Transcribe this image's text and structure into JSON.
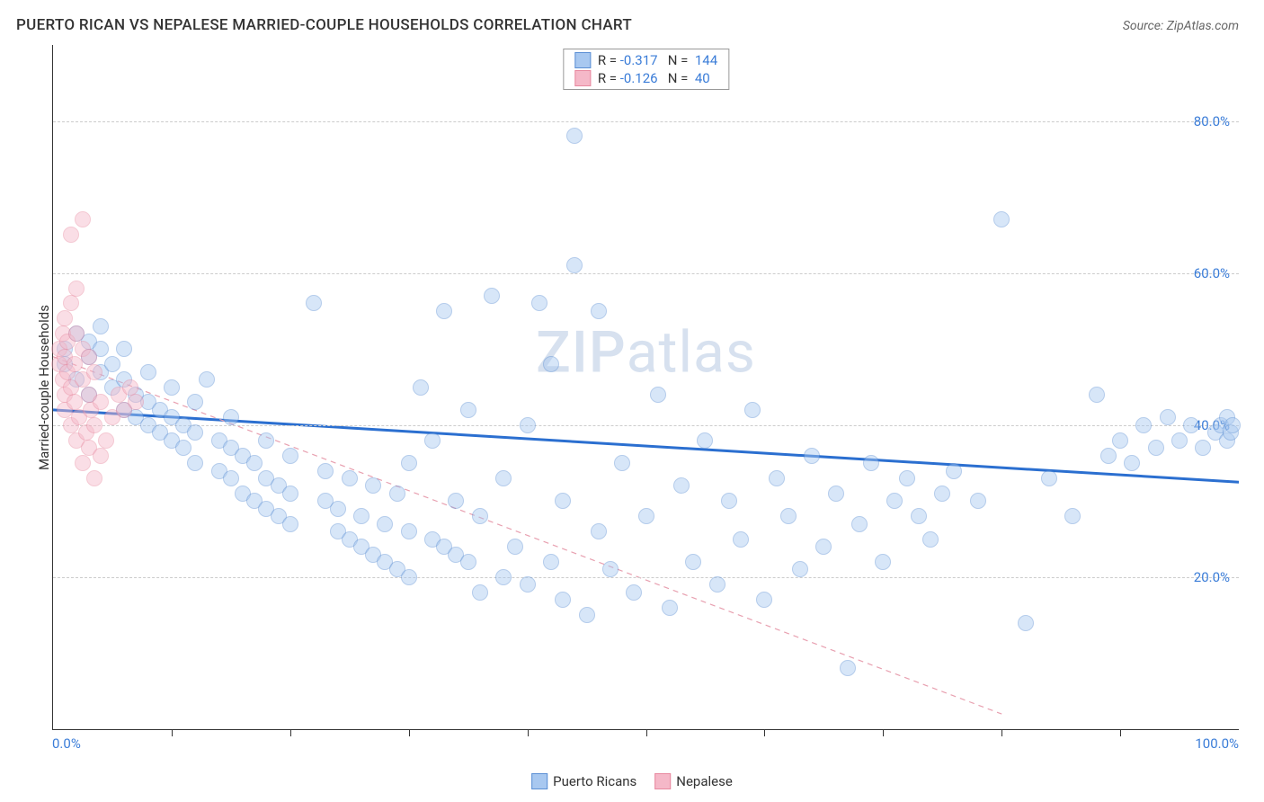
{
  "title": "PUERTO RICAN VS NEPALESE MARRIED-COUPLE HOUSEHOLDS CORRELATION CHART",
  "source": "Source: ZipAtlas.com",
  "ylabel": "Married-couple Households",
  "watermark_a": "ZIP",
  "watermark_b": "atlas",
  "chart": {
    "type": "scatter",
    "xlim": [
      0,
      100
    ],
    "ylim": [
      0,
      90
    ],
    "x_min_label": "0.0%",
    "x_max_label": "100.0%",
    "ytick_values": [
      20,
      40,
      60,
      80
    ],
    "ytick_labels": [
      "20.0%",
      "40.0%",
      "60.0%",
      "80.0%"
    ],
    "xtick_values": [
      10,
      20,
      30,
      40,
      50,
      60,
      70,
      80,
      90
    ],
    "background_color": "#ffffff",
    "grid_color": "#cccccc",
    "axis_color": "#333333",
    "point_radius": 9,
    "point_opacity": 0.45,
    "series": [
      {
        "name": "Puerto Ricans",
        "color_fill": "#a8c8f0",
        "color_stroke": "#5b8fd4",
        "r": "-0.317",
        "n": "144",
        "trend": {
          "x1": 0,
          "y1": 42,
          "x2": 100,
          "y2": 32.5,
          "color": "#2b6fd0",
          "width": 3,
          "dash": "none"
        },
        "points": [
          [
            1,
            48
          ],
          [
            1,
            50
          ],
          [
            2,
            46
          ],
          [
            2,
            52
          ],
          [
            3,
            49
          ],
          [
            3,
            44
          ],
          [
            3,
            51
          ],
          [
            4,
            47
          ],
          [
            4,
            50
          ],
          [
            4,
            53
          ],
          [
            5,
            45
          ],
          [
            5,
            48
          ],
          [
            6,
            42
          ],
          [
            6,
            46
          ],
          [
            6,
            50
          ],
          [
            7,
            41
          ],
          [
            7,
            44
          ],
          [
            8,
            40
          ],
          [
            8,
            43
          ],
          [
            8,
            47
          ],
          [
            9,
            39
          ],
          [
            9,
            42
          ],
          [
            10,
            38
          ],
          [
            10,
            41
          ],
          [
            10,
            45
          ],
          [
            11,
            37
          ],
          [
            11,
            40
          ],
          [
            12,
            35
          ],
          [
            12,
            39
          ],
          [
            12,
            43
          ],
          [
            13,
            46
          ],
          [
            14,
            34
          ],
          [
            14,
            38
          ],
          [
            15,
            33
          ],
          [
            15,
            37
          ],
          [
            15,
            41
          ],
          [
            16,
            31
          ],
          [
            16,
            36
          ],
          [
            17,
            30
          ],
          [
            17,
            35
          ],
          [
            18,
            29
          ],
          [
            18,
            33
          ],
          [
            18,
            38
          ],
          [
            19,
            28
          ],
          [
            19,
            32
          ],
          [
            20,
            27
          ],
          [
            20,
            31
          ],
          [
            20,
            36
          ],
          [
            22,
            56
          ],
          [
            23,
            30
          ],
          [
            23,
            34
          ],
          [
            24,
            26
          ],
          [
            24,
            29
          ],
          [
            25,
            25
          ],
          [
            25,
            33
          ],
          [
            26,
            24
          ],
          [
            26,
            28
          ],
          [
            27,
            23
          ],
          [
            27,
            32
          ],
          [
            28,
            22
          ],
          [
            28,
            27
          ],
          [
            29,
            21
          ],
          [
            29,
            31
          ],
          [
            30,
            20
          ],
          [
            30,
            26
          ],
          [
            30,
            35
          ],
          [
            31,
            45
          ],
          [
            32,
            25
          ],
          [
            32,
            38
          ],
          [
            33,
            24
          ],
          [
            33,
            55
          ],
          [
            34,
            23
          ],
          [
            34,
            30
          ],
          [
            35,
            22
          ],
          [
            35,
            42
          ],
          [
            36,
            18
          ],
          [
            36,
            28
          ],
          [
            37,
            57
          ],
          [
            38,
            20
          ],
          [
            38,
            33
          ],
          [
            39,
            24
          ],
          [
            40,
            19
          ],
          [
            40,
            40
          ],
          [
            41,
            56
          ],
          [
            42,
            22
          ],
          [
            42,
            48
          ],
          [
            43,
            17
          ],
          [
            43,
            30
          ],
          [
            44,
            78
          ],
          [
            44,
            61
          ],
          [
            45,
            15
          ],
          [
            46,
            26
          ],
          [
            46,
            55
          ],
          [
            47,
            21
          ],
          [
            48,
            35
          ],
          [
            49,
            18
          ],
          [
            50,
            28
          ],
          [
            51,
            44
          ],
          [
            52,
            16
          ],
          [
            53,
            32
          ],
          [
            54,
            22
          ],
          [
            55,
            38
          ],
          [
            56,
            19
          ],
          [
            57,
            30
          ],
          [
            58,
            25
          ],
          [
            59,
            42
          ],
          [
            60,
            17
          ],
          [
            61,
            33
          ],
          [
            62,
            28
          ],
          [
            63,
            21
          ],
          [
            64,
            36
          ],
          [
            65,
            24
          ],
          [
            66,
            31
          ],
          [
            67,
            8
          ],
          [
            68,
            27
          ],
          [
            69,
            35
          ],
          [
            70,
            22
          ],
          [
            71,
            30
          ],
          [
            72,
            33
          ],
          [
            73,
            28
          ],
          [
            74,
            25
          ],
          [
            75,
            31
          ],
          [
            76,
            34
          ],
          [
            78,
            30
          ],
          [
            80,
            67
          ],
          [
            82,
            14
          ],
          [
            84,
            33
          ],
          [
            86,
            28
          ],
          [
            88,
            44
          ],
          [
            89,
            36
          ],
          [
            90,
            38
          ],
          [
            91,
            35
          ],
          [
            92,
            40
          ],
          [
            93,
            37
          ],
          [
            94,
            41
          ],
          [
            95,
            38
          ],
          [
            96,
            40
          ],
          [
            97,
            37
          ],
          [
            98,
            39
          ],
          [
            98.5,
            40
          ],
          [
            99,
            38
          ],
          [
            99,
            41
          ],
          [
            99.3,
            39
          ],
          [
            99.5,
            40
          ]
        ]
      },
      {
        "name": "Nepalese",
        "color_fill": "#f5b8c8",
        "color_stroke": "#e8889f",
        "r": "-0.126",
        "n": "40",
        "trend": {
          "x1": 0,
          "y1": 49,
          "x2": 80,
          "y2": 2,
          "color": "#e8a0b0",
          "width": 1.2,
          "dash": "6,5"
        },
        "points": [
          [
            0.5,
            48
          ],
          [
            0.5,
            50
          ],
          [
            0.8,
            46
          ],
          [
            0.8,
            52
          ],
          [
            1,
            44
          ],
          [
            1,
            49
          ],
          [
            1,
            54
          ],
          [
            1,
            42
          ],
          [
            1.2,
            47
          ],
          [
            1.2,
            51
          ],
          [
            1.5,
            40
          ],
          [
            1.5,
            45
          ],
          [
            1.5,
            56
          ],
          [
            1.5,
            65
          ],
          [
            1.8,
            43
          ],
          [
            1.8,
            48
          ],
          [
            2,
            38
          ],
          [
            2,
            52
          ],
          [
            2,
            58
          ],
          [
            2.2,
            41
          ],
          [
            2.5,
            35
          ],
          [
            2.5,
            46
          ],
          [
            2.5,
            50
          ],
          [
            2.5,
            67
          ],
          [
            2.8,
            39
          ],
          [
            3,
            37
          ],
          [
            3,
            44
          ],
          [
            3,
            49
          ],
          [
            3.2,
            42
          ],
          [
            3.5,
            33
          ],
          [
            3.5,
            40
          ],
          [
            3.5,
            47
          ],
          [
            4,
            36
          ],
          [
            4,
            43
          ],
          [
            4.5,
            38
          ],
          [
            5,
            41
          ],
          [
            5.5,
            44
          ],
          [
            6,
            42
          ],
          [
            6.5,
            45
          ],
          [
            7,
            43
          ]
        ]
      }
    ]
  },
  "legend": {
    "items": [
      {
        "label": "Puerto Ricans",
        "fill": "#a8c8f0",
        "stroke": "#5b8fd4"
      },
      {
        "label": "Nepalese",
        "fill": "#f5b8c8",
        "stroke": "#e8889f"
      }
    ]
  }
}
